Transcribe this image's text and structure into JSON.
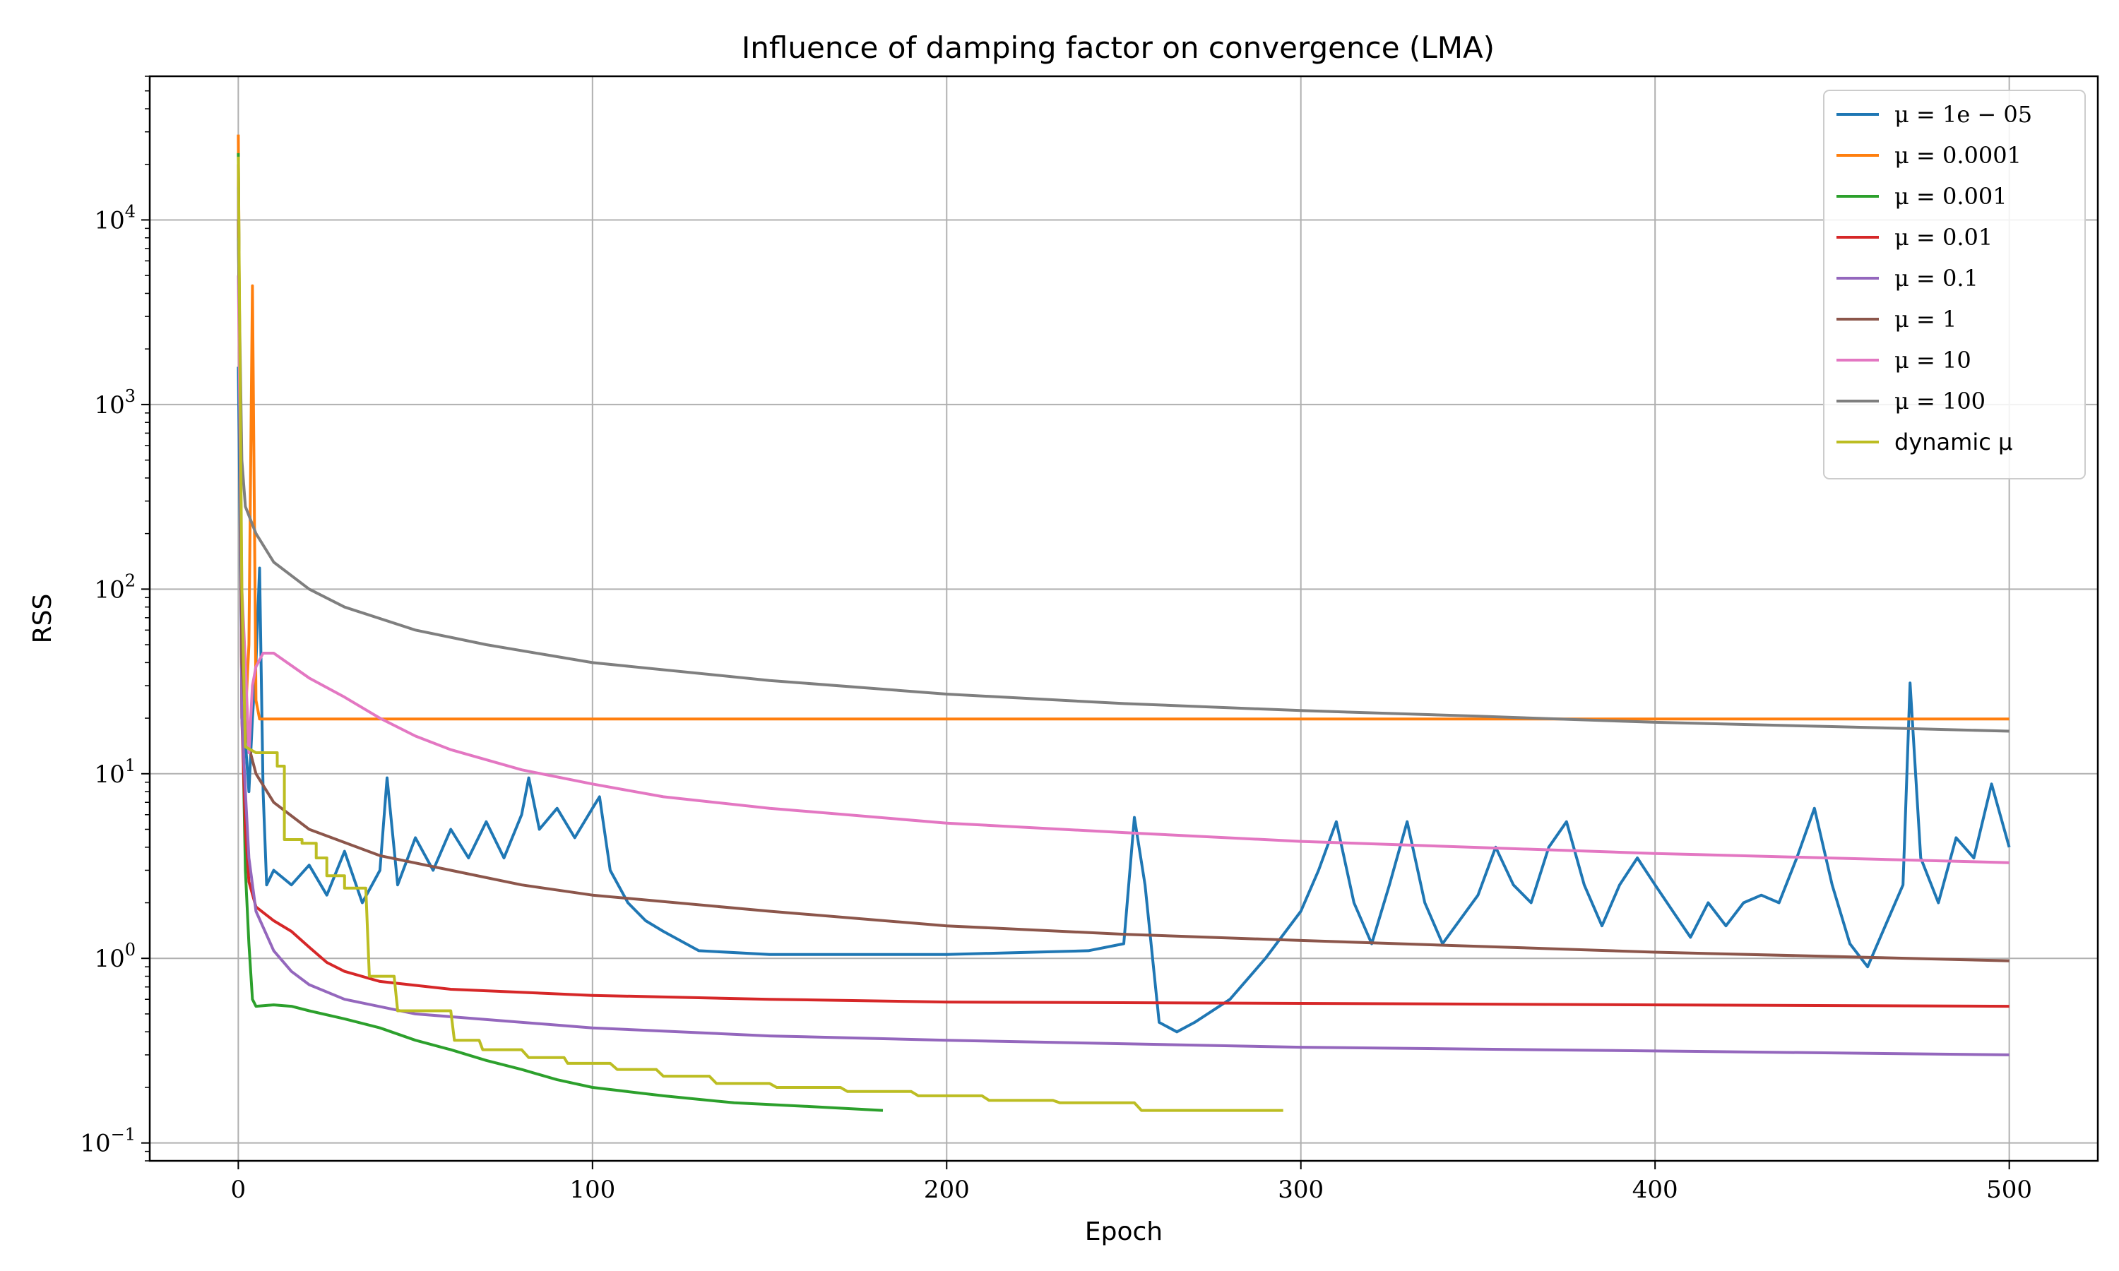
{
  "chart_data": {
    "type": "line",
    "title": "Influence of damping factor on convergence (LMA)",
    "xlabel": "Epoch",
    "ylabel": "RSS",
    "xlim": [
      -25,
      525
    ],
    "ylim": [
      0.08,
      60000
    ],
    "yscale": "log",
    "grid": true,
    "legend_position": "top-right",
    "xticks": [
      0,
      100,
      200,
      300,
      400,
      500
    ],
    "yticks": [
      {
        "value": 0.1,
        "base": "10",
        "exp": "−1"
      },
      {
        "value": 1,
        "base": "10",
        "exp": "0"
      },
      {
        "value": 10,
        "base": "10",
        "exp": "1"
      },
      {
        "value": 100,
        "base": "10",
        "exp": "2"
      },
      {
        "value": 1000,
        "base": "10",
        "exp": "3"
      },
      {
        "value": 10000,
        "base": "10",
        "exp": "4"
      }
    ],
    "series": [
      {
        "name": "μ = 1e − 05",
        "color": "#1f77b4",
        "points": [
          [
            0,
            1600
          ],
          [
            1,
            30
          ],
          [
            2,
            15
          ],
          [
            3,
            8
          ],
          [
            4,
            20
          ],
          [
            5,
            40
          ],
          [
            6,
            130
          ],
          [
            7,
            8
          ],
          [
            8,
            2.5
          ],
          [
            10,
            3
          ],
          [
            15,
            2.5
          ],
          [
            20,
            3.2
          ],
          [
            25,
            2.2
          ],
          [
            30,
            3.8
          ],
          [
            35,
            2.0
          ],
          [
            40,
            3.0
          ],
          [
            42,
            9.5
          ],
          [
            45,
            2.5
          ],
          [
            50,
            4.5
          ],
          [
            55,
            3.0
          ],
          [
            60,
            5.0
          ],
          [
            65,
            3.5
          ],
          [
            70,
            5.5
          ],
          [
            75,
            3.5
          ],
          [
            80,
            6.0
          ],
          [
            82,
            9.5
          ],
          [
            85,
            5.0
          ],
          [
            90,
            6.5
          ],
          [
            95,
            4.5
          ],
          [
            100,
            6.5
          ],
          [
            102,
            7.5
          ],
          [
            105,
            3.0
          ],
          [
            110,
            2.0
          ],
          [
            115,
            1.6
          ],
          [
            120,
            1.4
          ],
          [
            130,
            1.1
          ],
          [
            150,
            1.05
          ],
          [
            200,
            1.05
          ],
          [
            240,
            1.1
          ],
          [
            250,
            1.2
          ],
          [
            253,
            5.8
          ],
          [
            256,
            2.5
          ],
          [
            260,
            0.45
          ],
          [
            265,
            0.4
          ],
          [
            270,
            0.45
          ],
          [
            280,
            0.6
          ],
          [
            290,
            1.0
          ],
          [
            300,
            1.8
          ],
          [
            305,
            3.0
          ],
          [
            310,
            5.5
          ],
          [
            315,
            2.0
          ],
          [
            320,
            1.2
          ],
          [
            325,
            2.5
          ],
          [
            330,
            5.5
          ],
          [
            335,
            2.0
          ],
          [
            340,
            1.2
          ],
          [
            350,
            2.2
          ],
          [
            355,
            4.0
          ],
          [
            360,
            2.5
          ],
          [
            365,
            2.0
          ],
          [
            370,
            4.0
          ],
          [
            375,
            5.5
          ],
          [
            380,
            2.5
          ],
          [
            385,
            1.5
          ],
          [
            390,
            2.5
          ],
          [
            395,
            3.5
          ],
          [
            400,
            2.5
          ],
          [
            405,
            1.8
          ],
          [
            410,
            1.3
          ],
          [
            415,
            2.0
          ],
          [
            420,
            1.5
          ],
          [
            425,
            2.0
          ],
          [
            430,
            2.2
          ],
          [
            435,
            2.0
          ],
          [
            440,
            3.5
          ],
          [
            445,
            6.5
          ],
          [
            450,
            2.5
          ],
          [
            455,
            1.2
          ],
          [
            460,
            0.9
          ],
          [
            465,
            1.5
          ],
          [
            470,
            2.5
          ],
          [
            472,
            31
          ],
          [
            475,
            3.5
          ],
          [
            480,
            2.0
          ],
          [
            485,
            4.5
          ],
          [
            490,
            3.5
          ],
          [
            495,
            8.8
          ],
          [
            500,
            4.0
          ]
        ]
      },
      {
        "name": "μ = 0.0001",
        "color": "#ff7f0e",
        "points": [
          [
            0,
            29000
          ],
          [
            1,
            20
          ],
          [
            2,
            19.8
          ],
          [
            3,
            50
          ],
          [
            4,
            4400
          ],
          [
            5,
            25
          ],
          [
            6,
            19.8
          ],
          [
            10,
            19.8
          ],
          [
            100,
            19.8
          ],
          [
            200,
            19.8
          ],
          [
            300,
            19.8
          ],
          [
            400,
            19.8
          ],
          [
            500,
            19.8
          ]
        ]
      },
      {
        "name": "μ = 0.001",
        "color": "#2ca02c",
        "points": [
          [
            0,
            23000
          ],
          [
            1,
            30
          ],
          [
            2,
            3
          ],
          [
            3,
            1.2
          ],
          [
            4,
            0.6
          ],
          [
            5,
            0.55
          ],
          [
            10,
            0.56
          ],
          [
            15,
            0.55
          ],
          [
            20,
            0.52
          ],
          [
            30,
            0.47
          ],
          [
            40,
            0.42
          ],
          [
            50,
            0.36
          ],
          [
            60,
            0.32
          ],
          [
            70,
            0.28
          ],
          [
            80,
            0.25
          ],
          [
            90,
            0.22
          ],
          [
            100,
            0.2
          ],
          [
            120,
            0.18
          ],
          [
            140,
            0.165
          ],
          [
            160,
            0.158
          ],
          [
            182,
            0.15
          ]
        ]
      },
      {
        "name": "μ = 0.01",
        "color": "#d62728",
        "points": [
          [
            0,
            20000
          ],
          [
            1,
            20
          ],
          [
            2,
            5
          ],
          [
            3,
            2.6
          ],
          [
            5,
            1.9
          ],
          [
            10,
            1.6
          ],
          [
            15,
            1.4
          ],
          [
            20,
            1.15
          ],
          [
            25,
            0.95
          ],
          [
            30,
            0.85
          ],
          [
            40,
            0.75
          ],
          [
            60,
            0.68
          ],
          [
            100,
            0.63
          ],
          [
            150,
            0.6
          ],
          [
            200,
            0.58
          ],
          [
            300,
            0.57
          ],
          [
            400,
            0.56
          ],
          [
            500,
            0.55
          ]
        ]
      },
      {
        "name": "μ = 0.1",
        "color": "#9467bd",
        "points": [
          [
            0,
            15000
          ],
          [
            1,
            20
          ],
          [
            2,
            8
          ],
          [
            3,
            3.5
          ],
          [
            5,
            1.8
          ],
          [
            10,
            1.1
          ],
          [
            15,
            0.85
          ],
          [
            20,
            0.72
          ],
          [
            30,
            0.6
          ],
          [
            50,
            0.5
          ],
          [
            100,
            0.42
          ],
          [
            150,
            0.38
          ],
          [
            200,
            0.36
          ],
          [
            300,
            0.33
          ],
          [
            400,
            0.315
          ],
          [
            500,
            0.3
          ]
        ]
      },
      {
        "name": "μ = 1",
        "color": "#8c564b",
        "points": [
          [
            0,
            10000
          ],
          [
            1,
            40
          ],
          [
            2,
            20
          ],
          [
            3,
            14
          ],
          [
            5,
            10
          ],
          [
            10,
            7
          ],
          [
            20,
            5
          ],
          [
            40,
            3.6
          ],
          [
            60,
            3.0
          ],
          [
            80,
            2.5
          ],
          [
            100,
            2.2
          ],
          [
            150,
            1.8
          ],
          [
            200,
            1.5
          ],
          [
            250,
            1.35
          ],
          [
            300,
            1.25
          ],
          [
            400,
            1.08
          ],
          [
            500,
            0.97
          ]
        ]
      },
      {
        "name": "μ = 10",
        "color": "#e377c2",
        "points": [
          [
            0,
            5000
          ],
          [
            1,
            100
          ],
          [
            2,
            40
          ],
          [
            3,
            13
          ],
          [
            4,
            30
          ],
          [
            5,
            38
          ],
          [
            7,
            45
          ],
          [
            10,
            45
          ],
          [
            20,
            33
          ],
          [
            30,
            26
          ],
          [
            40,
            20
          ],
          [
            50,
            16
          ],
          [
            60,
            13.5
          ],
          [
            80,
            10.5
          ],
          [
            100,
            8.8
          ],
          [
            120,
            7.5
          ],
          [
            150,
            6.5
          ],
          [
            200,
            5.4
          ],
          [
            250,
            4.8
          ],
          [
            300,
            4.3
          ],
          [
            400,
            3.7
          ],
          [
            500,
            3.3
          ]
        ]
      },
      {
        "name": "μ = 100",
        "color": "#7f7f7f",
        "points": [
          [
            0,
            8000
          ],
          [
            1,
            500
          ],
          [
            2,
            280
          ],
          [
            5,
            200
          ],
          [
            10,
            140
          ],
          [
            20,
            100
          ],
          [
            30,
            80
          ],
          [
            50,
            60
          ],
          [
            70,
            50
          ],
          [
            100,
            40
          ],
          [
            150,
            32
          ],
          [
            200,
            27
          ],
          [
            250,
            24
          ],
          [
            300,
            22
          ],
          [
            350,
            20.5
          ],
          [
            400,
            19
          ],
          [
            450,
            18
          ],
          [
            500,
            17
          ]
        ]
      },
      {
        "name": "dynamic μ",
        "color": "#bcbd22",
        "points": [
          [
            0,
            22000
          ],
          [
            1,
            100
          ],
          [
            2,
            14
          ],
          [
            5,
            13
          ],
          [
            11,
            13
          ],
          [
            11,
            11
          ],
          [
            13,
            11
          ],
          [
            13,
            4.4
          ],
          [
            18,
            4.4
          ],
          [
            18,
            4.2
          ],
          [
            22,
            4.2
          ],
          [
            22,
            3.5
          ],
          [
            25,
            3.5
          ],
          [
            25,
            2.8
          ],
          [
            30,
            2.8
          ],
          [
            30,
            2.4
          ],
          [
            36,
            2.4
          ],
          [
            37,
            0.8
          ],
          [
            44,
            0.8
          ],
          [
            45,
            0.52
          ],
          [
            60,
            0.52
          ],
          [
            61,
            0.36
          ],
          [
            68,
            0.36
          ],
          [
            69,
            0.32
          ],
          [
            80,
            0.32
          ],
          [
            82,
            0.29
          ],
          [
            92,
            0.29
          ],
          [
            93,
            0.27
          ],
          [
            105,
            0.27
          ],
          [
            107,
            0.25
          ],
          [
            118,
            0.25
          ],
          [
            120,
            0.23
          ],
          [
            133,
            0.23
          ],
          [
            135,
            0.21
          ],
          [
            150,
            0.21
          ],
          [
            152,
            0.2
          ],
          [
            170,
            0.2
          ],
          [
            172,
            0.19
          ],
          [
            190,
            0.19
          ],
          [
            192,
            0.18
          ],
          [
            210,
            0.18
          ],
          [
            212,
            0.17
          ],
          [
            230,
            0.17
          ],
          [
            232,
            0.165
          ],
          [
            253,
            0.165
          ],
          [
            255,
            0.15
          ],
          [
            295,
            0.15
          ]
        ]
      }
    ]
  }
}
